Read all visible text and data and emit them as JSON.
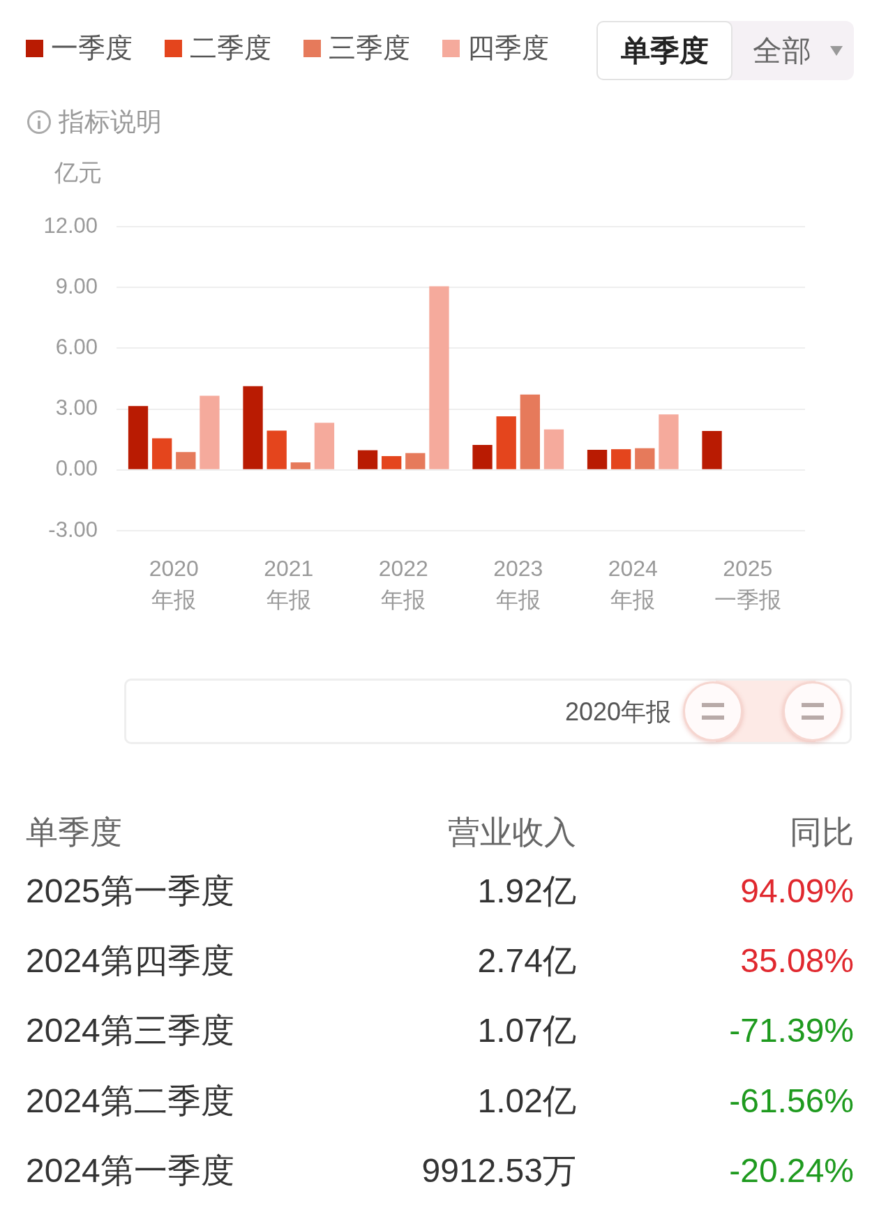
{
  "chart_data": [
    {
      "type": "bar",
      "ylabel": "亿元",
      "categories": [
        "2020\n年报",
        "2021\n年报",
        "2022\n年报",
        "2023\n年报",
        "2024\n年报",
        "2025\n一季报"
      ],
      "series": [
        {
          "name": "一季度",
          "color": "#b91b02",
          "values": [
            3.15,
            4.13,
            0.97,
            1.23,
            0.99,
            1.92
          ]
        },
        {
          "name": "二季度",
          "color": "#e4451d",
          "values": [
            1.56,
            1.94,
            0.68,
            2.64,
            1.02,
            null
          ]
        },
        {
          "name": "三季度",
          "color": "#e67a5b",
          "values": [
            0.88,
            0.37,
            0.83,
            3.72,
            1.07,
            null
          ]
        },
        {
          "name": "四季度",
          "color": "#f5aa9c",
          "values": [
            3.66,
            2.32,
            9.06,
            2.0,
            2.74,
            null
          ]
        }
      ],
      "ylim": [
        -3,
        12
      ],
      "yticks": [
        {
          "value": -3,
          "label": "-3.00"
        },
        {
          "value": 0,
          "label": "0.00"
        },
        {
          "value": 3,
          "label": "3.00"
        },
        {
          "value": 6,
          "label": "6.00"
        },
        {
          "value": 9,
          "label": "9.00"
        },
        {
          "value": 12,
          "label": "12.00"
        }
      ],
      "grid": "y",
      "legend": "top left",
      "annotations": [
        "单季度",
        "全部",
        "指标说明",
        "2020年报"
      ]
    },
    {
      "type": "other",
      "annotations": [
        "单季度",
        "营业收入",
        "同比",
        "2025第一季度",
        "1.92亿",
        "94.09%",
        "2024第四季度",
        "2.74亿",
        "35.08%",
        "2024第三季度",
        "1.07亿",
        "-71.39%",
        "2024第二季度",
        "1.02亿",
        "-61.56%",
        "2024第一季度",
        "9912.53万",
        "-20.24%"
      ],
      "colors": [
        "#666666",
        "#666666",
        "#666666",
        "#333333",
        "#333333",
        "#e0282e",
        "#333333",
        "#333333",
        "#e0282e",
        "#333333",
        "#333333",
        "#1e9a1e",
        "#333333",
        "#333333",
        "#1e9a1e",
        "#333333",
        "#333333",
        "#1e9a1e"
      ]
    }
  ]
}
